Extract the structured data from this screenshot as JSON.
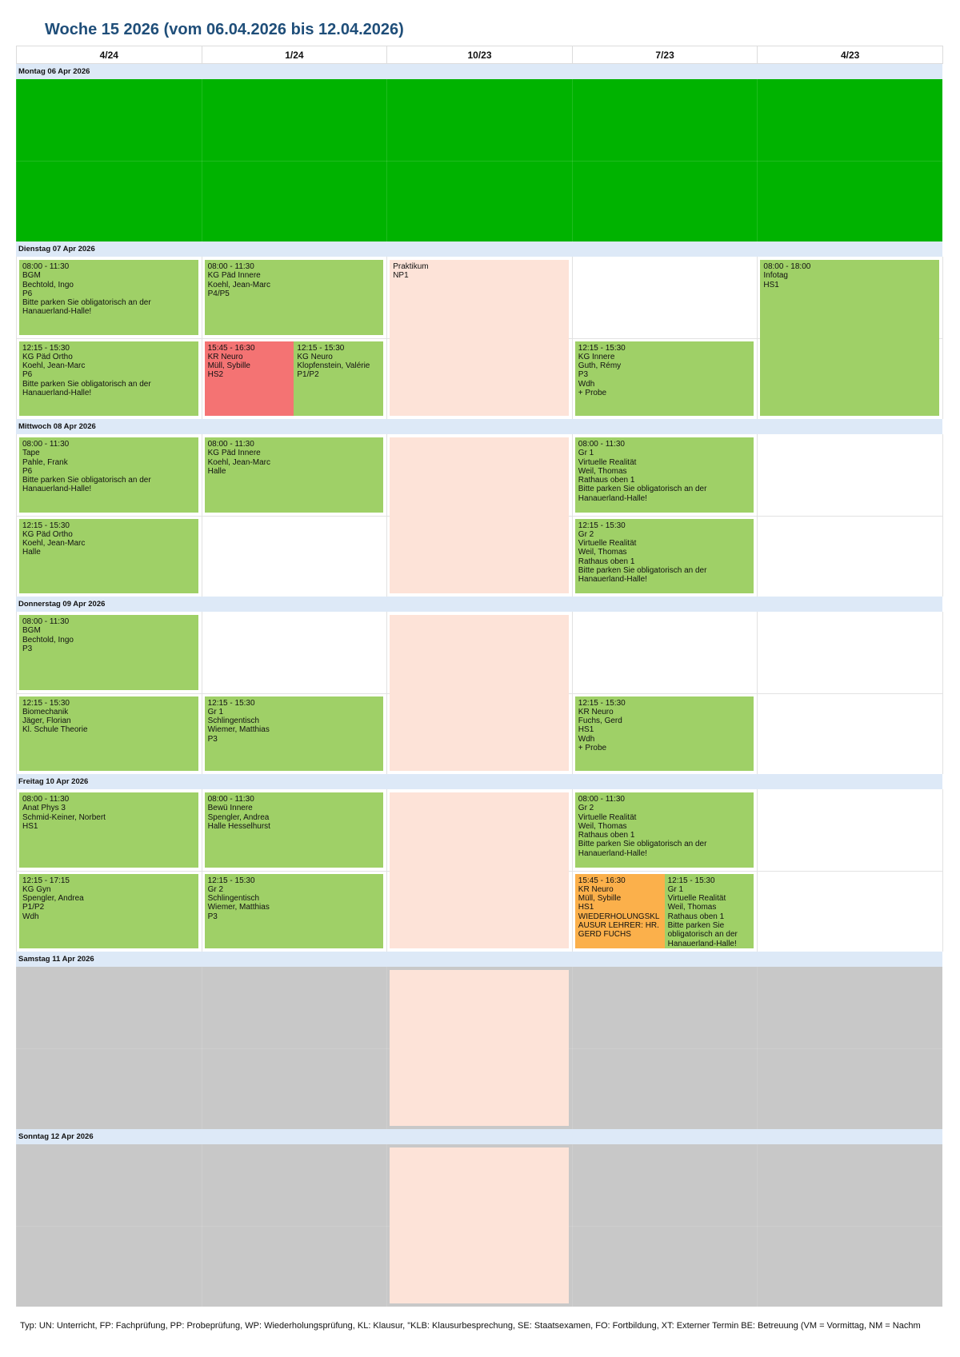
{
  "header": {
    "title": "Woche 15 2026 (vom 06.04.2026 bis 12.04.2026)"
  },
  "columns": [
    "4/24",
    "1/24",
    "10/23",
    "7/23",
    "4/23"
  ],
  "days": [
    {
      "label": "Montag 06 Apr 2026",
      "fill": "#00b300",
      "cells": [
        {},
        {},
        {},
        {},
        {}
      ]
    },
    {
      "label": "Dienstag 07 Apr 2026",
      "cells": [
        {
          "morning": [
            {
              "color": "#9fd067",
              "lines": [
                "08:00 - 11:30",
                "BGM",
                "Bechtold, Ingo",
                "P6",
                "Bitte parken Sie obligatorisch an der Hanauerland-Halle!"
              ]
            }
          ],
          "afternoon": [
            {
              "color": "#9fd067",
              "lines": [
                "12:15 - 15:30",
                "KG Päd Ortho",
                "Koehl, Jean-Marc",
                "P6",
                "Bitte parken Sie obligatorisch an der Hanauerland-Halle!"
              ]
            }
          ]
        },
        {
          "morning": [
            {
              "color": "#9fd067",
              "lines": [
                "08:00 - 11:30",
                "KG Päd Innere",
                "Koehl, Jean-Marc",
                "P4/P5"
              ]
            }
          ],
          "afternoon": [
            {
              "color": "#f47373",
              "lines": [
                "15:45 - 16:30",
                "KR Neuro",
                "Müll, Sybille",
                "HS2"
              ]
            },
            {
              "color": "#9fd067",
              "lines": [
                "12:15 - 15:30",
                "KG Neuro",
                "Klopfenstein, Valérie",
                "P1/P2"
              ]
            }
          ]
        },
        {
          "all_day": [
            {
              "color": "#fde3d8",
              "lines": [
                "Praktikum",
                "NP1"
              ]
            }
          ]
        },
        {
          "afternoon": [
            {
              "color": "#9fd067",
              "lines": [
                "12:15 - 15:30",
                "KG Innere",
                "Guth, Rémy",
                "P3",
                "Wdh",
                "+ Probe"
              ]
            }
          ]
        },
        {
          "all_day": [
            {
              "color": "#9fd067",
              "lines": [
                "08:00 - 18:00",
                "Infotag",
                "HS1"
              ]
            }
          ]
        }
      ]
    },
    {
      "label": "Mittwoch 08 Apr 2026",
      "cells": [
        {
          "morning": [
            {
              "color": "#9fd067",
              "lines": [
                "08:00 - 11:30",
                "Tape",
                "Pahle, Frank",
                "P6",
                "Bitte parken Sie obligatorisch an der Hanauerland-Halle!"
              ]
            }
          ],
          "afternoon": [
            {
              "color": "#9fd067",
              "lines": [
                "12:15 - 15:30",
                "KG Päd Ortho",
                "Koehl, Jean-Marc",
                "Halle"
              ]
            }
          ]
        },
        {
          "morning": [
            {
              "color": "#9fd067",
              "lines": [
                "08:00 - 11:30",
                "KG Päd Innere",
                "Koehl, Jean-Marc",
                "Halle"
              ]
            }
          ]
        },
        {
          "all_day": [
            {
              "color": "#fde3d8",
              "lines": []
            }
          ]
        },
        {
          "morning": [
            {
              "color": "#9fd067",
              "lines": [
                "08:00 - 11:30",
                "Gr 1",
                "Virtuelle Realität",
                "Weil, Thomas",
                "Rathaus oben 1",
                "Bitte parken Sie obligatorisch an der Hanauerland-Halle!"
              ]
            }
          ],
          "afternoon": [
            {
              "color": "#9fd067",
              "lines": [
                "12:15 - 15:30",
                "Gr 2",
                "Virtuelle Realität",
                "Weil, Thomas",
                "Rathaus oben 1",
                "Bitte parken Sie obligatorisch an der Hanauerland-Halle!"
              ]
            }
          ]
        },
        {}
      ]
    },
    {
      "label": "Donnerstag 09 Apr 2026",
      "cells": [
        {
          "morning": [
            {
              "color": "#9fd067",
              "lines": [
                "08:00 - 11:30",
                "BGM",
                "Bechtold, Ingo",
                "P3"
              ]
            }
          ],
          "afternoon": [
            {
              "color": "#9fd067",
              "lines": [
                "12:15 - 15:30",
                "Biomechanik",
                "Jäger, Florian",
                "Kl. Schule Theorie"
              ]
            }
          ]
        },
        {
          "afternoon": [
            {
              "color": "#9fd067",
              "lines": [
                "12:15 - 15:30",
                "Gr 1",
                "Schlingentisch",
                "Wiemer, Matthias",
                "P3"
              ]
            }
          ]
        },
        {
          "all_day": [
            {
              "color": "#fde3d8",
              "lines": []
            }
          ]
        },
        {
          "afternoon": [
            {
              "color": "#9fd067",
              "lines": [
                "12:15 - 15:30",
                "KR Neuro",
                "Fuchs, Gerd",
                "HS1",
                "Wdh",
                "+ Probe"
              ]
            }
          ]
        },
        {}
      ]
    },
    {
      "label": "Freitag 10 Apr 2026",
      "cells": [
        {
          "morning": [
            {
              "color": "#9fd067",
              "lines": [
                "08:00 - 11:30",
                "Anat Phys 3",
                "Schmid-Keiner, Norbert",
                "HS1"
              ]
            }
          ],
          "afternoon": [
            {
              "color": "#9fd067",
              "lines": [
                "12:15 - 17:15",
                "KG Gyn",
                "Spengler, Andrea",
                "P1/P2",
                "Wdh"
              ]
            }
          ]
        },
        {
          "morning": [
            {
              "color": "#9fd067",
              "lines": [
                "08:00 - 11:30",
                "Bewü Innere",
                "Spengler, Andrea",
                "Halle Hesselhurst"
              ]
            }
          ],
          "afternoon": [
            {
              "color": "#9fd067",
              "lines": [
                "12:15 - 15:30",
                "Gr 2",
                "Schlingentisch",
                "Wiemer, Matthias",
                "P3"
              ]
            }
          ]
        },
        {
          "all_day": [
            {
              "color": "#fde3d8",
              "lines": []
            }
          ]
        },
        {
          "morning": [
            {
              "color": "#9fd067",
              "lines": [
                "08:00 - 11:30",
                "Gr 2",
                "Virtuelle Realität",
                "Weil, Thomas",
                "Rathaus oben 1",
                "Bitte parken Sie obligatorisch an der Hanauerland-Halle!"
              ]
            }
          ],
          "afternoon": [
            {
              "color": "#fbb04b",
              "lines": [
                "15:45 - 16:30",
                "KR Neuro",
                "Müll, Sybille",
                "HS1",
                "WIEDERHOLUNGSKLAUSUR LEHRER: HR. GERD FUCHS"
              ]
            },
            {
              "color": "#9fd067",
              "lines": [
                "12:15 - 15:30",
                "Gr 1",
                "Virtuelle Realität",
                "Weil, Thomas",
                "Rathaus oben 1",
                "Bitte parken Sie obligatorisch an der Hanauerland-Halle!"
              ]
            }
          ]
        },
        {}
      ]
    },
    {
      "label": "Samstag 11 Apr 2026",
      "fill": "#c8c8c8",
      "cells": [
        {},
        {},
        {
          "all_day": [
            {
              "color": "#fde3d8",
              "lines": []
            }
          ]
        },
        {},
        {}
      ]
    },
    {
      "label": "Sonntag 12 Apr 2026",
      "fill": "#c8c8c8",
      "cells": [
        {},
        {},
        {
          "all_day": [
            {
              "color": "#fde3d8",
              "lines": []
            }
          ]
        },
        {},
        {}
      ]
    }
  ],
  "legend": "Typ: UN: Unterricht, FP: Fachprüfung, PP: Probeprüfung, WP: Wiederholungsprüfung, KL: Klausur, \"KLB: Klausurbesprechung, SE: Staatsexamen, FO: Fortbildung, XT: Externer Termin BE: Betreuung (VM = Vormittag, NM = Nachm"
}
